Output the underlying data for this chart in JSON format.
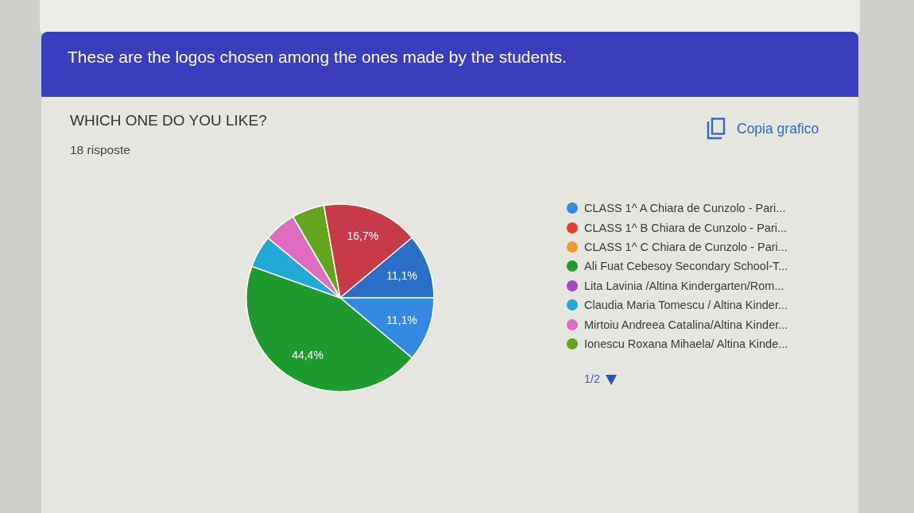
{
  "chart_data": {
    "type": "pie",
    "title": "WHICH ONE DO YOU LIKE?",
    "subtitle": "18 risposte",
    "categories": [
      "CLASS 1^ A Chiara de Cunzolo - Pari...",
      "CLASS 1^ B Chiara de Cunzolo - Pari...",
      "CLASS 1^ C Chiara de Cunzolo - Pari...",
      "Ali Fuat Cebesoy Secondary School-T...",
      "Lita Lavinia /Altina Kindergarten/Rom...",
      "Claudia Maria Tomescu / Altina Kinder...",
      "Mirtoiu Andreea Catalina/Altina Kinder...",
      "Ionescu Roxana Mihaela/ Altina Kinde...",
      null,
      null
    ],
    "values": [
      11.1,
      0,
      0,
      44.4,
      0,
      5.6,
      5.6,
      5.6,
      16.7,
      11.1
    ],
    "colors": [
      "#3489e2",
      "#e0412f",
      "#f39a2b",
      "#1f9a2e",
      "#a244cc",
      "#22aad6",
      "#de6cc0",
      "#63a51d",
      "#c83a48",
      "#2a6fc6"
    ],
    "value_labels": [
      "11,1%",
      null,
      null,
      "44,4%",
      null,
      null,
      null,
      null,
      "16,7%",
      "11,1%"
    ],
    "legend": "right",
    "annotations": [
      "These are the logos chosen among the ones made by the students.",
      "Copia grafico",
      "1/2"
    ]
  }
}
